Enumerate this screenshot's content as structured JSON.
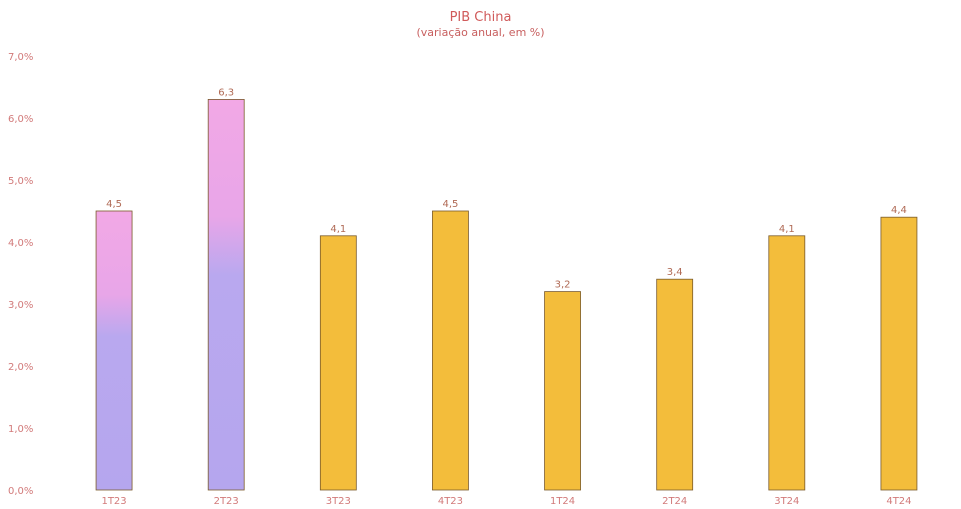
{
  "chart_data": {
    "type": "bar",
    "title": "PIB China",
    "subtitle": "(variação anual, em %)",
    "categories": [
      "1T23",
      "2T23",
      "3T23",
      "4T23",
      "1T24",
      "2T24",
      "3T24",
      "4T24"
    ],
    "values": [
      4.5,
      6.3,
      4.1,
      4.5,
      3.2,
      3.4,
      4.1,
      4.4
    ],
    "data_labels": [
      "4,5",
      "6,3",
      "4,1",
      "4,5",
      "3,2",
      "3,4",
      "4,1",
      "4,4"
    ],
    "ylim": [
      0,
      7
    ],
    "yticks": [
      0,
      1,
      2,
      3,
      4,
      5,
      6,
      7
    ],
    "ytick_labels": [
      "0,0%",
      "1,0%",
      "2,0%",
      "3,0%",
      "4,0%",
      "5,0%",
      "6,0%",
      "7,0%"
    ],
    "grid": false,
    "legend": false,
    "colors": {
      "highlight_top": "#f2a8e6",
      "highlight_bottom": "#b9a8ef",
      "default": "#f3bd3b",
      "bar_outline": "#7a5a2a",
      "axis_text": "#d27a7a",
      "title_text": "#d05a5a"
    },
    "highlighted_categories": [
      "1T23",
      "2T23"
    ]
  }
}
